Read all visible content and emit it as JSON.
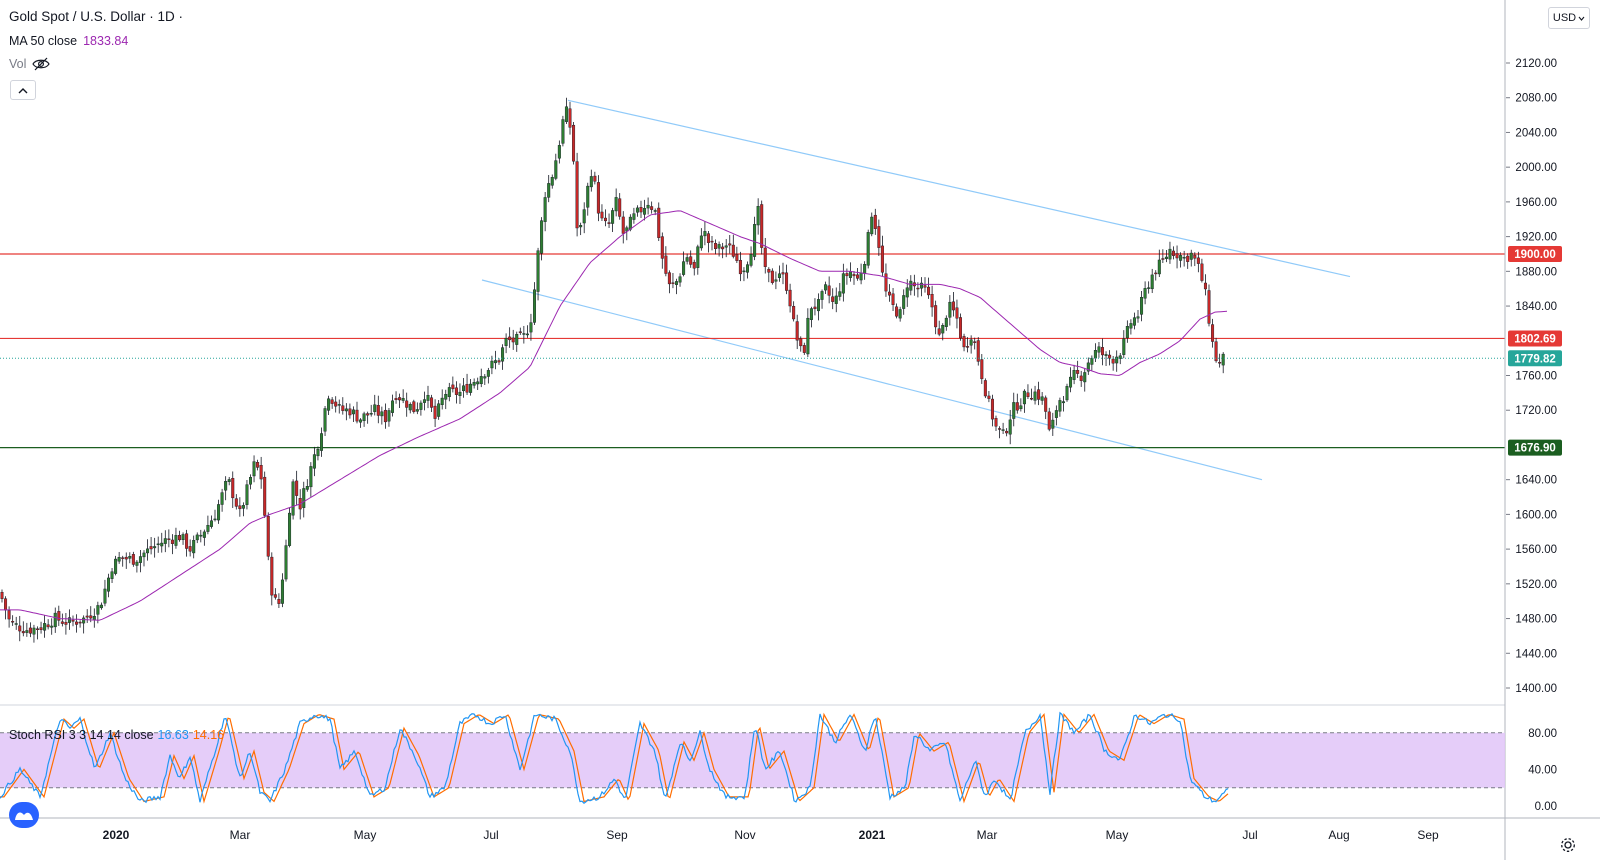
{
  "legend": {
    "title": "Gold Spot / U.S. Dollar · 1D ·",
    "ma_label": "MA 50 close",
    "ma_value": "1833.84",
    "vol_label": "Vol",
    "stoch_label": "Stoch RSI 3 3 14 14 close",
    "stoch_k": "16.63",
    "stoch_d": "14.16"
  },
  "toolbar": {
    "currency": "USD"
  },
  "icons": {
    "hidden": "eye-slash-icon",
    "collapse": "chevron-up-icon",
    "logo": "tradingview-logo-icon",
    "settings": "gear-icon"
  },
  "colors": {
    "up": "#26a69a",
    "down": "#ef5350",
    "candle_up": "#2e7d32",
    "candle_down": "#c62828",
    "ma": "#9c27b0",
    "channel": "#90caf9",
    "resistance": "#e53935",
    "support": "#1b5e20",
    "stoch_k": "#2196f3",
    "stoch_d": "#ff6d00",
    "stoch_band": "#e1c4f8"
  },
  "chart_data": [
    {
      "type": "candlestick",
      "price_ylim": [
        1380,
        2140
      ],
      "price_ticks": [
        "2120.00",
        "2080.00",
        "2040.00",
        "2000.00",
        "1960.00",
        "1920.00",
        "1880.00",
        "1840.00",
        "1760.00",
        "1720.00",
        "1640.00",
        "1600.00",
        "1560.00",
        "1520.00",
        "1480.00",
        "1440.00",
        "1400.00"
      ],
      "x_ticks": [
        "2020",
        "Mar",
        "May",
        "Jul",
        "Sep",
        "Nov",
        "2021",
        "Mar",
        "May",
        "Jul",
        "Aug",
        "Sep"
      ],
      "horizontal_lines": [
        {
          "value": 1900.0,
          "label": "1900.00",
          "color": "#e53935"
        },
        {
          "value": 1802.69,
          "label": "1802.69",
          "color": "#e53935"
        },
        {
          "value": 1676.9,
          "label": "1676.90",
          "color": "#1b5e20"
        }
      ],
      "last_price": {
        "value": 1779.82,
        "label": "1779.82"
      },
      "ma_label": "MA 50 close",
      "close_anchors": [
        [
          0,
          1510
        ],
        [
          10,
          1475
        ],
        [
          20,
          1470
        ],
        [
          28,
          1467
        ],
        [
          40,
          1470
        ],
        [
          55,
          1480
        ],
        [
          70,
          1475
        ],
        [
          85,
          1480
        ],
        [
          100,
          1495
        ],
        [
          112,
          1540
        ],
        [
          120,
          1550
        ],
        [
          135,
          1548
        ],
        [
          150,
          1560
        ],
        [
          165,
          1570
        ],
        [
          180,
          1575
        ],
        [
          190,
          1560
        ],
        [
          200,
          1575
        ],
        [
          215,
          1600
        ],
        [
          228,
          1640
        ],
        [
          240,
          1600
        ],
        [
          255,
          1660
        ],
        [
          262,
          1640
        ],
        [
          270,
          1520
        ],
        [
          278,
          1490
        ],
        [
          285,
          1550
        ],
        [
          292,
          1640
        ],
        [
          300,
          1610
        ],
        [
          310,
          1650
        ],
        [
          320,
          1690
        ],
        [
          328,
          1740
        ],
        [
          340,
          1720
        ],
        [
          350,
          1720
        ],
        [
          360,
          1710
        ],
        [
          375,
          1720
        ],
        [
          385,
          1710
        ],
        [
          395,
          1740
        ],
        [
          405,
          1730
        ],
        [
          415,
          1720
        ],
        [
          425,
          1740
        ],
        [
          435,
          1710
        ],
        [
          445,
          1740
        ],
        [
          460,
          1740
        ],
        [
          470,
          1750
        ],
        [
          480,
          1760
        ],
        [
          490,
          1770
        ],
        [
          500,
          1780
        ],
        [
          505,
          1800
        ],
        [
          515,
          1800
        ],
        [
          525,
          1805
        ],
        [
          532,
          1830
        ],
        [
          538,
          1900
        ],
        [
          545,
          1970
        ],
        [
          552,
          1990
        ],
        [
          558,
          2020
        ],
        [
          564,
          2060
        ],
        [
          568,
          2065
        ],
        [
          573,
          2020
        ],
        [
          578,
          1910
        ],
        [
          585,
          1960
        ],
        [
          592,
          2000
        ],
        [
          600,
          1940
        ],
        [
          608,
          1930
        ],
        [
          616,
          1960
        ],
        [
          624,
          1920
        ],
        [
          632,
          1940
        ],
        [
          640,
          1950
        ],
        [
          648,
          1960
        ],
        [
          655,
          1950
        ],
        [
          663,
          1890
        ],
        [
          670,
          1860
        ],
        [
          678,
          1870
        ],
        [
          686,
          1900
        ],
        [
          694,
          1880
        ],
        [
          702,
          1930
        ],
        [
          710,
          1910
        ],
        [
          718,
          1905
        ],
        [
          726,
          1910
        ],
        [
          734,
          1900
        ],
        [
          742,
          1880
        ],
        [
          750,
          1900
        ],
        [
          758,
          1950
        ],
        [
          764,
          1880
        ],
        [
          772,
          1870
        ],
        [
          780,
          1880
        ],
        [
          788,
          1860
        ],
        [
          795,
          1810
        ],
        [
          803,
          1780
        ],
        [
          810,
          1840
        ],
        [
          818,
          1840
        ],
        [
          826,
          1860
        ],
        [
          834,
          1840
        ],
        [
          842,
          1870
        ],
        [
          850,
          1880
        ],
        [
          858,
          1870
        ],
        [
          866,
          1900
        ],
        [
          872,
          1950
        ],
        [
          878,
          1920
        ],
        [
          884,
          1860
        ],
        [
          892,
          1840
        ],
        [
          900,
          1830
        ],
        [
          908,
          1870
        ],
        [
          916,
          1860
        ],
        [
          924,
          1860
        ],
        [
          932,
          1840
        ],
        [
          940,
          1800
        ],
        [
          948,
          1840
        ],
        [
          956,
          1830
        ],
        [
          964,
          1790
        ],
        [
          972,
          1810
        ],
        [
          980,
          1770
        ],
        [
          988,
          1730
        ],
        [
          996,
          1700
        ],
        [
          1004,
          1690
        ],
        [
          1012,
          1720
        ],
        [
          1020,
          1730
        ],
        [
          1028,
          1740
        ],
        [
          1036,
          1740
        ],
        [
          1044,
          1730
        ],
        [
          1050,
          1690
        ],
        [
          1058,
          1730
        ],
        [
          1066,
          1740
        ],
        [
          1074,
          1760
        ],
        [
          1082,
          1760
        ],
        [
          1090,
          1780
        ],
        [
          1098,
          1790
        ],
        [
          1106,
          1780
        ],
        [
          1114,
          1780
        ],
        [
          1122,
          1790
        ],
        [
          1130,
          1820
        ],
        [
          1138,
          1830
        ],
        [
          1146,
          1860
        ],
        [
          1154,
          1880
        ],
        [
          1162,
          1890
        ],
        [
          1170,
          1905
        ],
        [
          1178,
          1900
        ],
        [
          1184,
          1895
        ],
        [
          1192,
          1900
        ],
        [
          1200,
          1880
        ],
        [
          1206,
          1850
        ],
        [
          1212,
          1800
        ],
        [
          1218,
          1770
        ],
        [
          1224,
          1780
        ]
      ],
      "ma_anchors": [
        [
          0,
          1490
        ],
        [
          20,
          1490
        ],
        [
          60,
          1480
        ],
        [
          100,
          1478
        ],
        [
          140,
          1500
        ],
        [
          180,
          1530
        ],
        [
          220,
          1560
        ],
        [
          250,
          1590
        ],
        [
          270,
          1600
        ],
        [
          300,
          1612
        ],
        [
          340,
          1640
        ],
        [
          380,
          1668
        ],
        [
          420,
          1690
        ],
        [
          460,
          1710
        ],
        [
          500,
          1740
        ],
        [
          530,
          1770
        ],
        [
          560,
          1840
        ],
        [
          590,
          1890
        ],
        [
          620,
          1920
        ],
        [
          650,
          1945
        ],
        [
          680,
          1950
        ],
        [
          710,
          1935
        ],
        [
          740,
          1920
        ],
        [
          760,
          1912
        ],
        [
          790,
          1895
        ],
        [
          820,
          1880
        ],
        [
          850,
          1880
        ],
        [
          880,
          1875
        ],
        [
          910,
          1865
        ],
        [
          940,
          1865
        ],
        [
          960,
          1860
        ],
        [
          980,
          1850
        ],
        [
          1000,
          1830
        ],
        [
          1020,
          1810
        ],
        [
          1040,
          1790
        ],
        [
          1060,
          1775
        ],
        [
          1080,
          1770
        ],
        [
          1100,
          1762
        ],
        [
          1120,
          1760
        ],
        [
          1140,
          1775
        ],
        [
          1160,
          1785
        ],
        [
          1180,
          1800
        ],
        [
          1200,
          1825
        ],
        [
          1215,
          1833
        ],
        [
          1228,
          1834
        ]
      ],
      "channel_upper": [
        [
          568,
          2077
        ],
        [
          1350,
          1874
        ]
      ],
      "channel_lower": [
        [
          482,
          1870
        ],
        [
          1262,
          1640
        ]
      ]
    },
    {
      "type": "line",
      "title": "Stoch RSI 3 3 14 14 close",
      "ylim": [
        -5,
        110
      ],
      "y_ticks": [
        "80.00",
        "40.00",
        "0.00"
      ],
      "band": [
        20,
        80
      ],
      "series": [
        {
          "name": "K",
          "color": "#2196f3",
          "value": 16.63
        },
        {
          "name": "D",
          "color": "#ff6d00",
          "value": 14.16
        }
      ],
      "k_anchors": [
        [
          0,
          10
        ],
        [
          20,
          40
        ],
        [
          40,
          10
        ],
        [
          60,
          95
        ],
        [
          70,
          85
        ],
        [
          80,
          95
        ],
        [
          95,
          40
        ],
        [
          110,
          80
        ],
        [
          125,
          30
        ],
        [
          140,
          5
        ],
        [
          160,
          10
        ],
        [
          170,
          55
        ],
        [
          180,
          30
        ],
        [
          190,
          55
        ],
        [
          200,
          5
        ],
        [
          215,
          60
        ],
        [
          225,
          100
        ],
        [
          240,
          30
        ],
        [
          250,
          60
        ],
        [
          260,
          15
        ],
        [
          270,
          5
        ],
        [
          285,
          40
        ],
        [
          300,
          90
        ],
        [
          315,
          100
        ],
        [
          330,
          95
        ],
        [
          340,
          40
        ],
        [
          355,
          60
        ],
        [
          370,
          10
        ],
        [
          385,
          20
        ],
        [
          400,
          85
        ],
        [
          415,
          55
        ],
        [
          430,
          10
        ],
        [
          445,
          20
        ],
        [
          460,
          90
        ],
        [
          475,
          100
        ],
        [
          490,
          90
        ],
        [
          505,
          100
        ],
        [
          520,
          40
        ],
        [
          535,
          100
        ],
        [
          555,
          95
        ],
        [
          570,
          60
        ],
        [
          580,
          5
        ],
        [
          600,
          10
        ],
        [
          615,
          30
        ],
        [
          625,
          5
        ],
        [
          640,
          90
        ],
        [
          655,
          60
        ],
        [
          665,
          5
        ],
        [
          680,
          70
        ],
        [
          690,
          50
        ],
        [
          700,
          80
        ],
        [
          710,
          40
        ],
        [
          725,
          10
        ],
        [
          745,
          10
        ],
        [
          755,
          90
        ],
        [
          765,
          40
        ],
        [
          780,
          60
        ],
        [
          795,
          5
        ],
        [
          810,
          20
        ],
        [
          820,
          100
        ],
        [
          835,
          70
        ],
        [
          850,
          100
        ],
        [
          865,
          60
        ],
        [
          875,
          100
        ],
        [
          890,
          10
        ],
        [
          905,
          20
        ],
        [
          915,
          80
        ],
        [
          930,
          60
        ],
        [
          945,
          70
        ],
        [
          960,
          5
        ],
        [
          975,
          50
        ],
        [
          985,
          10
        ],
        [
          995,
          30
        ],
        [
          1010,
          5
        ],
        [
          1025,
          80
        ],
        [
          1040,
          100
        ],
        [
          1050,
          15
        ],
        [
          1060,
          100
        ],
        [
          1075,
          80
        ],
        [
          1090,
          100
        ],
        [
          1105,
          60
        ],
        [
          1120,
          50
        ],
        [
          1135,
          100
        ],
        [
          1150,
          90
        ],
        [
          1165,
          100
        ],
        [
          1180,
          95
        ],
        [
          1190,
          30
        ],
        [
          1205,
          10
        ],
        [
          1215,
          5
        ],
        [
          1228,
          17
        ]
      ]
    }
  ]
}
